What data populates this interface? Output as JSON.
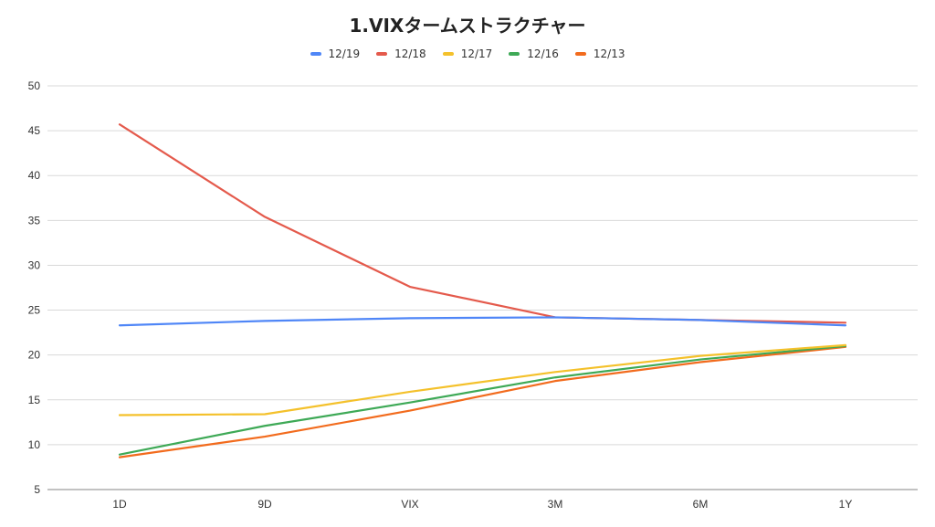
{
  "chart_data": {
    "type": "line",
    "title": "1.VIXタームストラクチャー",
    "xlabel": "",
    "ylabel": "",
    "categories": [
      "1D",
      "9D",
      "VIX",
      "3M",
      "6M",
      "1Y"
    ],
    "ylim": [
      5,
      50
    ],
    "yticks": [
      5,
      10,
      15,
      20,
      25,
      30,
      35,
      40,
      45,
      50
    ],
    "grid": true,
    "legend_position": "top",
    "series": [
      {
        "name": "12/19",
        "color": "#4f86f7",
        "values": [
          23.3,
          23.8,
          24.1,
          24.2,
          23.9,
          23.3
        ]
      },
      {
        "name": "12/18",
        "color": "#e45a4c",
        "values": [
          45.7,
          35.4,
          27.6,
          24.2,
          23.9,
          23.6
        ]
      },
      {
        "name": "12/17",
        "color": "#f4c12b",
        "values": [
          13.3,
          13.4,
          15.9,
          18.1,
          19.9,
          21.1
        ]
      },
      {
        "name": "12/16",
        "color": "#3ea956",
        "values": [
          8.9,
          12.1,
          14.7,
          17.5,
          19.5,
          21.0
        ]
      },
      {
        "name": "12/13",
        "color": "#f26b1d",
        "values": [
          8.6,
          10.9,
          13.8,
          17.1,
          19.2,
          20.9
        ]
      }
    ]
  }
}
